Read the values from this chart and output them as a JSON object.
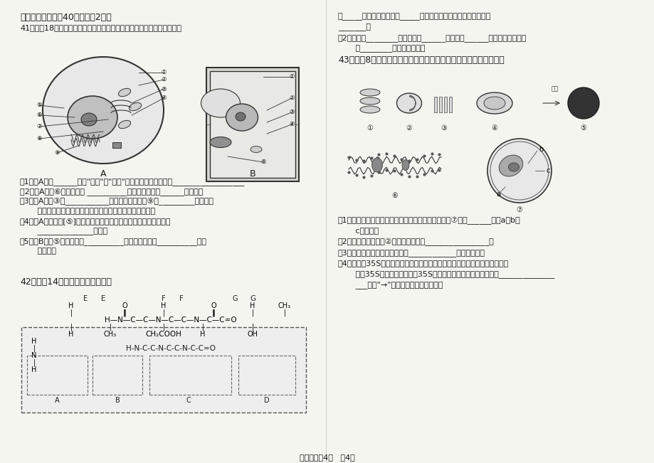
{
  "bg_color": "#f5f5f0",
  "text_color": "#1a1a1a",
  "title_section": "三、非选择题（共40分，每空2分）",
  "q41_title": "41、（共18分）下图是细胞的亚显微结构图。请根据图回答下面的问题：",
  "q41_items": [
    "（1）图A属于______（填\"植物\"或\"动物\"）细胞，其主要依据是__________________",
    "（2）图A中［⑥］所指的是 __________，它是细胞合成______的场所。",
    "（3）图A中［③］___________的功能是对来自［⑨］_________的蛋白质",
    "       进行分拣、包装，并分别送到细胞内或细胞外的目的地。",
    "（4）图A细胞中，[⑤]是动物和低等的植物具有的细胞器，与细胞的",
    "       ______________有关。",
    "（5）图B中［⑤］所指的是__________，它是细胞进行__________的主",
    "       要场所。"
  ],
  "q42_title": "42、（共14分）根据下图回答问题",
  "q42_prefix": "（",
  "q43_title": "43、（共8分）下列是细胞的部分结构放大图，请据图回答下列问题",
  "q43_items": [
    "（1）在细胞分裂间期，被碱性染料染成深色的结构是⑦中的______（从a、b、",
    "       c中选）。",
    "（2）观察活细胞中的②常用的染色剂是________________。",
    "（3）图中不属于生物膜系统的是____________（填标号）。",
    "（4）用含有35S标记的氨基酸的培养基培养动物细胞，该细胞能合成并分泌一",
    "       种含35S的蛋白质。请写出35S在细胞各结构间移动的先后顺序______________",
    "       ___（用\"→\"和序号表示先后顺序）。"
  ],
  "right_top_text": [
    "由_____个氨基酸分子失去_____个水分子而形成的，这种反应叫做",
    "_______。",
    "（2）图中有________个肽键，有______个氨基和______个羧基。该化合物",
    "       由________种氨基酸组成。"
  ],
  "footer": "高一生物共4页   第4页"
}
